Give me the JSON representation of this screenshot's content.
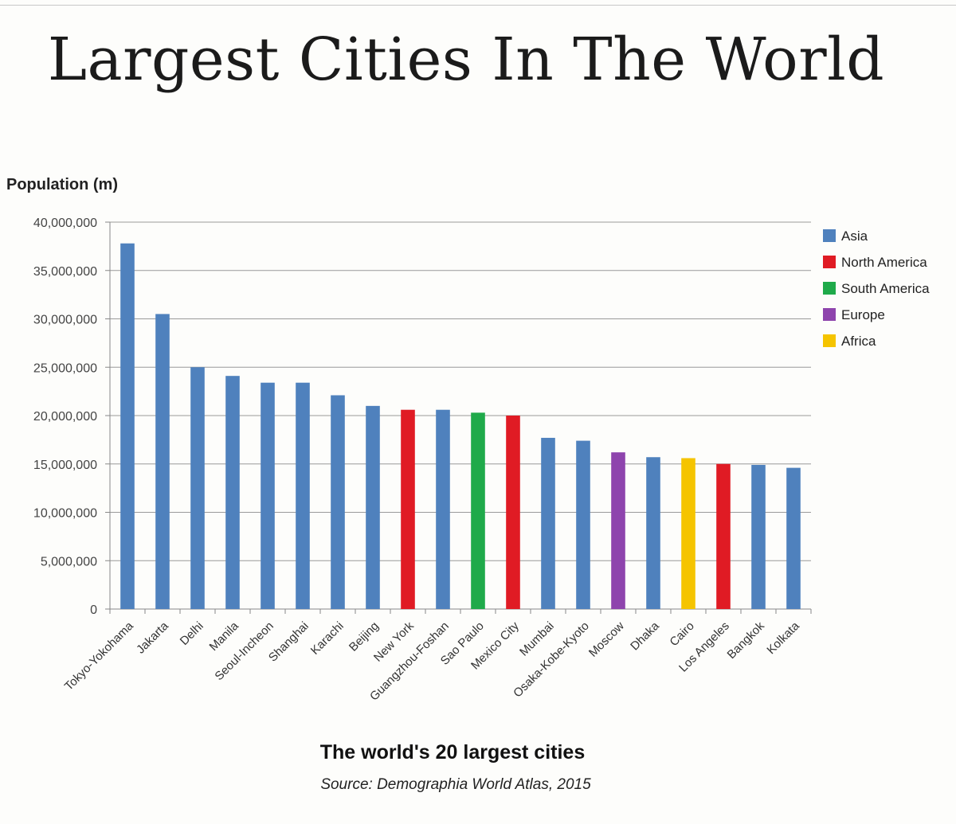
{
  "headline": "Largest Cities In The World",
  "chart_data": {
    "type": "bar",
    "title": "The world's 20 largest cities",
    "source": "Source: Demographia World Atlas, 2015",
    "xlabel": "",
    "ylabel": "Population (m)",
    "ylim": [
      0,
      40000000
    ],
    "yticks": [
      0,
      5000000,
      10000000,
      15000000,
      20000000,
      25000000,
      30000000,
      35000000,
      40000000
    ],
    "ytick_labels": [
      "0",
      "5,000,000",
      "10,000,000",
      "15,000,000",
      "20,000,000",
      "25,000,000",
      "30,000,000",
      "35,000,000",
      "40,000,000"
    ],
    "grid": true,
    "legend_position": "right",
    "legend": [
      {
        "name": "Asia",
        "color": "#4f81bd"
      },
      {
        "name": "North America",
        "color": "#e01b24"
      },
      {
        "name": "South America",
        "color": "#1faa4a"
      },
      {
        "name": "Europe",
        "color": "#8e44ad"
      },
      {
        "name": "Africa",
        "color": "#f5c400"
      }
    ],
    "categories": [
      "Tokyo-Yokohama",
      "Jakarta",
      "Delhi",
      "Manila",
      "Seoul-Incheon",
      "Shanghai",
      "Karachi",
      "Beijing",
      "New York",
      "Guangzhou-Foshan",
      "Sao Paulo",
      "Mexico City",
      "Mumbai",
      "Osaka-Kobe-Kyoto",
      "Moscow",
      "Dhaka",
      "Cairo",
      "Los Angeles",
      "Bangkok",
      "Kolkata"
    ],
    "values": [
      37800000,
      30500000,
      25000000,
      24100000,
      23400000,
      23400000,
      22100000,
      21000000,
      20600000,
      20600000,
      20300000,
      20000000,
      17700000,
      17400000,
      16200000,
      15700000,
      15600000,
      15000000,
      14900000,
      14600000
    ],
    "regions": [
      "Asia",
      "Asia",
      "Asia",
      "Asia",
      "Asia",
      "Asia",
      "Asia",
      "Asia",
      "North America",
      "Asia",
      "South America",
      "North America",
      "Asia",
      "Asia",
      "Europe",
      "Asia",
      "Africa",
      "North America",
      "Asia",
      "Asia"
    ]
  }
}
